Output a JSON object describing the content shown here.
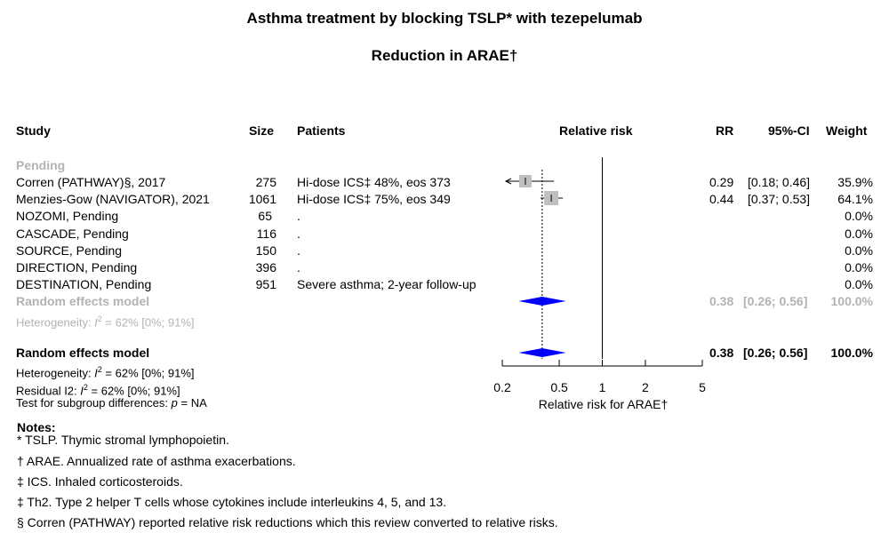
{
  "title": "Asthma treatment by blocking TSLP* with tezepelumab",
  "subtitle": "Reduction in ARAE†",
  "headers": {
    "study": "Study",
    "size": "Size",
    "patients": "Patients",
    "rr_plot": "Relative risk",
    "rr": "RR",
    "ci": "95%-CI",
    "weight": "Weight"
  },
  "subgroup_label": "Pending",
  "subgroup_model": {
    "label": "Random effects model",
    "rr": "0.38",
    "ci": "[0.26; 0.56]",
    "weight": "100.0%",
    "heterogeneity_prefix": "Heterogeneity: ",
    "heterogeneity_stat": "I",
    "heterogeneity_sup": "2",
    "heterogeneity_value": " = 62% [0%; 91%]"
  },
  "overall_model": {
    "label": "Random effects model",
    "rr": "0.38",
    "ci": "[0.26; 0.56]",
    "weight": "100.0%",
    "heterogeneity_prefix": "Heterogeneity: ",
    "heterogeneity_stat": "I",
    "heterogeneity_sup": "2",
    "heterogeneity_value": " = 62% [0%; 91%]",
    "residual_prefix": "Residual I2: ",
    "residual_stat": "I",
    "residual_sup": "2",
    "residual_value": " = 62% [0%; 91%]",
    "subgroup_test_prefix": "Test for subgroup differences:  ",
    "subgroup_test_p": "p",
    "subgroup_test_value": " = NA"
  },
  "chart_data": {
    "type": "forest",
    "xlabel": "Relative risk for ARAE†",
    "x_scale": "log",
    "xlim": [
      0.2,
      5
    ],
    "ticks": [
      0.2,
      0.5,
      1,
      2,
      5
    ],
    "tick_labels": [
      "0.2",
      "0.5",
      "1",
      "2",
      "5"
    ],
    "null_line": 1,
    "pooled_estimate": 0.38,
    "pooled_ci": [
      0.26,
      0.56
    ],
    "studies": [
      {
        "study": "Corren (PATHWAY)§, 2017",
        "size": "275",
        "patients": "Hi-dose ICS‡ 48%, eos 373",
        "rr": 0.29,
        "ci_low": 0.18,
        "ci_high": 0.46,
        "weight": 35.9,
        "rr_text": "0.29",
        "ci_text": "[0.18; 0.46]",
        "weight_text": "35.9%"
      },
      {
        "study": "Menzies-Gow (NAVIGATOR), 2021",
        "size": "1061",
        "patients": "Hi-dose ICS‡ 75%, eos 349",
        "rr": 0.44,
        "ci_low": 0.37,
        "ci_high": 0.53,
        "weight": 64.1,
        "rr_text": "0.44",
        "ci_text": "[0.37; 0.53]",
        "weight_text": "64.1%"
      },
      {
        "study": "NOZOMI, Pending",
        "size": "65",
        "patients": ".",
        "rr": null,
        "weight_text": "0.0%"
      },
      {
        "study": "CASCADE, Pending",
        "size": "116",
        "patients": ".",
        "rr": null,
        "weight_text": "0.0%"
      },
      {
        "study": "SOURCE, Pending",
        "size": "150",
        "patients": ".",
        "rr": null,
        "weight_text": "0.0%"
      },
      {
        "study": "DIRECTION, Pending",
        "size": "396",
        "patients": ".",
        "rr": null,
        "weight_text": "0.0%"
      },
      {
        "study": "DESTINATION, Pending",
        "size": "951",
        "patients": "Severe asthma; 2-year follow-up",
        "rr": null,
        "weight_text": "0.0%"
      }
    ],
    "colors": {
      "diamond": "#0000ff",
      "box": "#bfbfbf",
      "grey_text": "#b3b3b3"
    }
  },
  "notes": {
    "heading": "Notes:",
    "items": [
      "* TSLP. Thymic stromal lymphopoietin.",
      "† ARAE. Annualized rate of asthma exacerbations.",
      "‡ ICS. Inhaled corticosteroids.",
      "‡ Th2. Type 2 helper T cells whose cytokines include interleukins 4, 5, and 13.",
      "§ Corren (PATHWAY) reported relative risk reductions which this review converted to relative risks."
    ]
  }
}
